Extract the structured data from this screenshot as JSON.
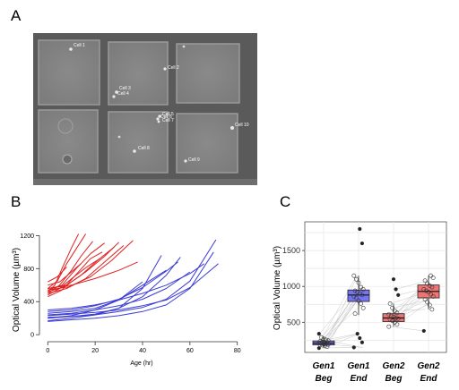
{
  "panels": {
    "a": "A",
    "b": "B",
    "c": "C"
  },
  "micrograph": {
    "cells": [
      "Cell 1",
      "Cell 2",
      "Cell 3",
      "Cell 4",
      "Cell 5",
      "Cell 6",
      "Cell 7",
      "Cell 8",
      "Cell 9",
      "Cell 10"
    ]
  },
  "chart_data": [
    {
      "type": "line",
      "xlabel": "Age (hr)",
      "ylabel": "Optical Volume (µm³)",
      "xlim": [
        -2,
        82
      ],
      "ylim": [
        -20,
        1280
      ],
      "xticks": [
        0,
        20,
        40,
        60,
        80
      ],
      "yticks": [
        0,
        400,
        800,
        1200
      ],
      "ytick_labels": [
        "0",
        "400",
        "800",
        "1200"
      ],
      "grid": false,
      "colors": {
        "Gen1": "#3b3bd6",
        "Gen2": "#e02020"
      },
      "series": [
        {
          "group": "Gen2",
          "x": [
            0,
            3,
            6,
            10,
            13
          ],
          "y": [
            520,
            600,
            800,
            1050,
            1220
          ]
        },
        {
          "group": "Gen2",
          "x": [
            0,
            4,
            8,
            12,
            16
          ],
          "y": [
            560,
            650,
            860,
            1040,
            1220
          ]
        },
        {
          "group": "Gen2",
          "x": [
            0,
            5,
            10,
            14,
            19
          ],
          "y": [
            500,
            600,
            780,
            950,
            1130
          ]
        },
        {
          "group": "Gen2",
          "x": [
            0,
            6,
            12,
            18,
            24
          ],
          "y": [
            540,
            600,
            800,
            980,
            1110
          ]
        },
        {
          "group": "Gen2",
          "x": [
            0,
            6,
            12,
            18,
            23
          ],
          "y": [
            460,
            540,
            730,
            920,
            1000
          ]
        },
        {
          "group": "Gen2",
          "x": [
            0,
            5,
            11,
            17,
            22
          ],
          "y": [
            480,
            560,
            700,
            830,
            920
          ]
        },
        {
          "group": "Gen2",
          "x": [
            0,
            7,
            14,
            21,
            28
          ],
          "y": [
            520,
            580,
            720,
            900,
            1060
          ]
        },
        {
          "group": "Gen2",
          "x": [
            0,
            8,
            16,
            24,
            30
          ],
          "y": [
            560,
            600,
            760,
            950,
            1120
          ]
        },
        {
          "group": "Gen2",
          "x": [
            0,
            8,
            16,
            24,
            32
          ],
          "y": [
            500,
            560,
            680,
            880,
            1080
          ]
        },
        {
          "group": "Gen2",
          "x": [
            0,
            9,
            18,
            27,
            36
          ],
          "y": [
            540,
            580,
            700,
            900,
            1140
          ]
        },
        {
          "group": "Gen2",
          "x": [
            0,
            10,
            20,
            30,
            38
          ],
          "y": [
            560,
            600,
            680,
            780,
            880
          ]
        },
        {
          "group": "Gen2",
          "x": [
            0,
            5,
            10,
            14
          ],
          "y": [
            600,
            640,
            760,
            860
          ]
        },
        {
          "group": "Gen2",
          "x": [
            0,
            4,
            8
          ],
          "y": [
            640,
            700,
            820
          ]
        },
        {
          "group": "Gen1",
          "x": [
            0,
            10,
            20,
            30,
            40,
            48
          ],
          "y": [
            170,
            200,
            240,
            320,
            560,
            960
          ]
        },
        {
          "group": "Gen1",
          "x": [
            0,
            10,
            20,
            30,
            40,
            50,
            56
          ],
          "y": [
            200,
            220,
            250,
            320,
            460,
            720,
            940
          ]
        },
        {
          "group": "Gen1",
          "x": [
            0,
            10,
            20,
            30,
            40,
            50
          ],
          "y": [
            260,
            280,
            320,
            420,
            600,
            780
          ]
        },
        {
          "group": "Gen1",
          "x": [
            0,
            10,
            20,
            30,
            40,
            50,
            55
          ],
          "y": [
            280,
            300,
            350,
            430,
            570,
            770,
            880
          ]
        },
        {
          "group": "Gen1",
          "x": [
            0,
            10,
            20,
            30,
            40,
            50,
            60,
            71
          ],
          "y": [
            210,
            220,
            240,
            280,
            330,
            430,
            650,
            1150
          ]
        },
        {
          "group": "Gen1",
          "x": [
            0,
            10,
            20,
            30,
            40,
            50,
            60,
            70
          ],
          "y": [
            160,
            180,
            200,
            230,
            280,
            360,
            560,
            1000
          ]
        },
        {
          "group": "Gen1",
          "x": [
            0,
            10,
            20,
            30,
            40,
            50,
            60,
            72
          ],
          "y": [
            230,
            250,
            270,
            300,
            350,
            420,
            570,
            860
          ]
        },
        {
          "group": "Gen1",
          "x": [
            0,
            10,
            20,
            30,
            40,
            50,
            60
          ],
          "y": [
            240,
            260,
            300,
            350,
            430,
            560,
            760
          ]
        },
        {
          "group": "Gen1",
          "x": [
            0,
            10,
            20,
            30,
            40,
            50,
            60,
            66
          ],
          "y": [
            300,
            320,
            360,
            420,
            500,
            600,
            740,
            860
          ]
        },
        {
          "group": "Gen1",
          "x": [
            0,
            10,
            20,
            30,
            40
          ],
          "y": [
            200,
            230,
            300,
            420,
            640
          ]
        }
      ]
    },
    {
      "type": "box",
      "ylabel": "Optical Volume (µm³)",
      "ylim": [
        80,
        1900
      ],
      "yticks": [
        500,
        1000,
        1500
      ],
      "ytick_labels": [
        "500",
        "1000",
        "1500"
      ],
      "grid": true,
      "categories": [
        {
          "line1": "Gen1",
          "line2": "Beg"
        },
        {
          "line1": "Gen1",
          "line2": "End"
        },
        {
          "line1": "Gen2",
          "line2": "Beg"
        },
        {
          "line1": "Gen2",
          "line2": "End"
        }
      ],
      "boxes": [
        {
          "q1": 185,
          "median": 210,
          "q3": 240,
          "whisker_low": 150,
          "whisker_high": 290,
          "color": "#6666ee",
          "points": [
            140,
            160,
            170,
            180,
            185,
            190,
            195,
            200,
            205,
            210,
            215,
            220,
            225,
            235,
            245,
            255,
            270,
            290,
            340
          ]
        },
        {
          "q1": 790,
          "median": 880,
          "q3": 950,
          "whisker_low": 600,
          "whisker_high": 1150,
          "color": "#6666ee",
          "points": [
            150,
            220,
            280,
            340,
            620,
            700,
            760,
            800,
            840,
            860,
            880,
            900,
            920,
            940,
            960,
            990,
            1050,
            1100,
            1150,
            1600,
            1800
          ]
        },
        {
          "q1": 510,
          "median": 560,
          "q3": 620,
          "whisker_low": 440,
          "whisker_high": 760,
          "color": "#ee6666",
          "points": [
            440,
            470,
            500,
            520,
            540,
            550,
            560,
            575,
            590,
            610,
            630,
            660,
            700,
            760,
            880,
            960,
            1100
          ]
        },
        {
          "q1": 840,
          "median": 930,
          "q3": 1020,
          "whisker_low": 680,
          "whisker_high": 1150,
          "color": "#ee6666",
          "points": [
            380,
            680,
            740,
            780,
            820,
            860,
            890,
            920,
            940,
            960,
            990,
            1010,
            1040,
            1080,
            1120,
            1150
          ]
        }
      ]
    }
  ]
}
